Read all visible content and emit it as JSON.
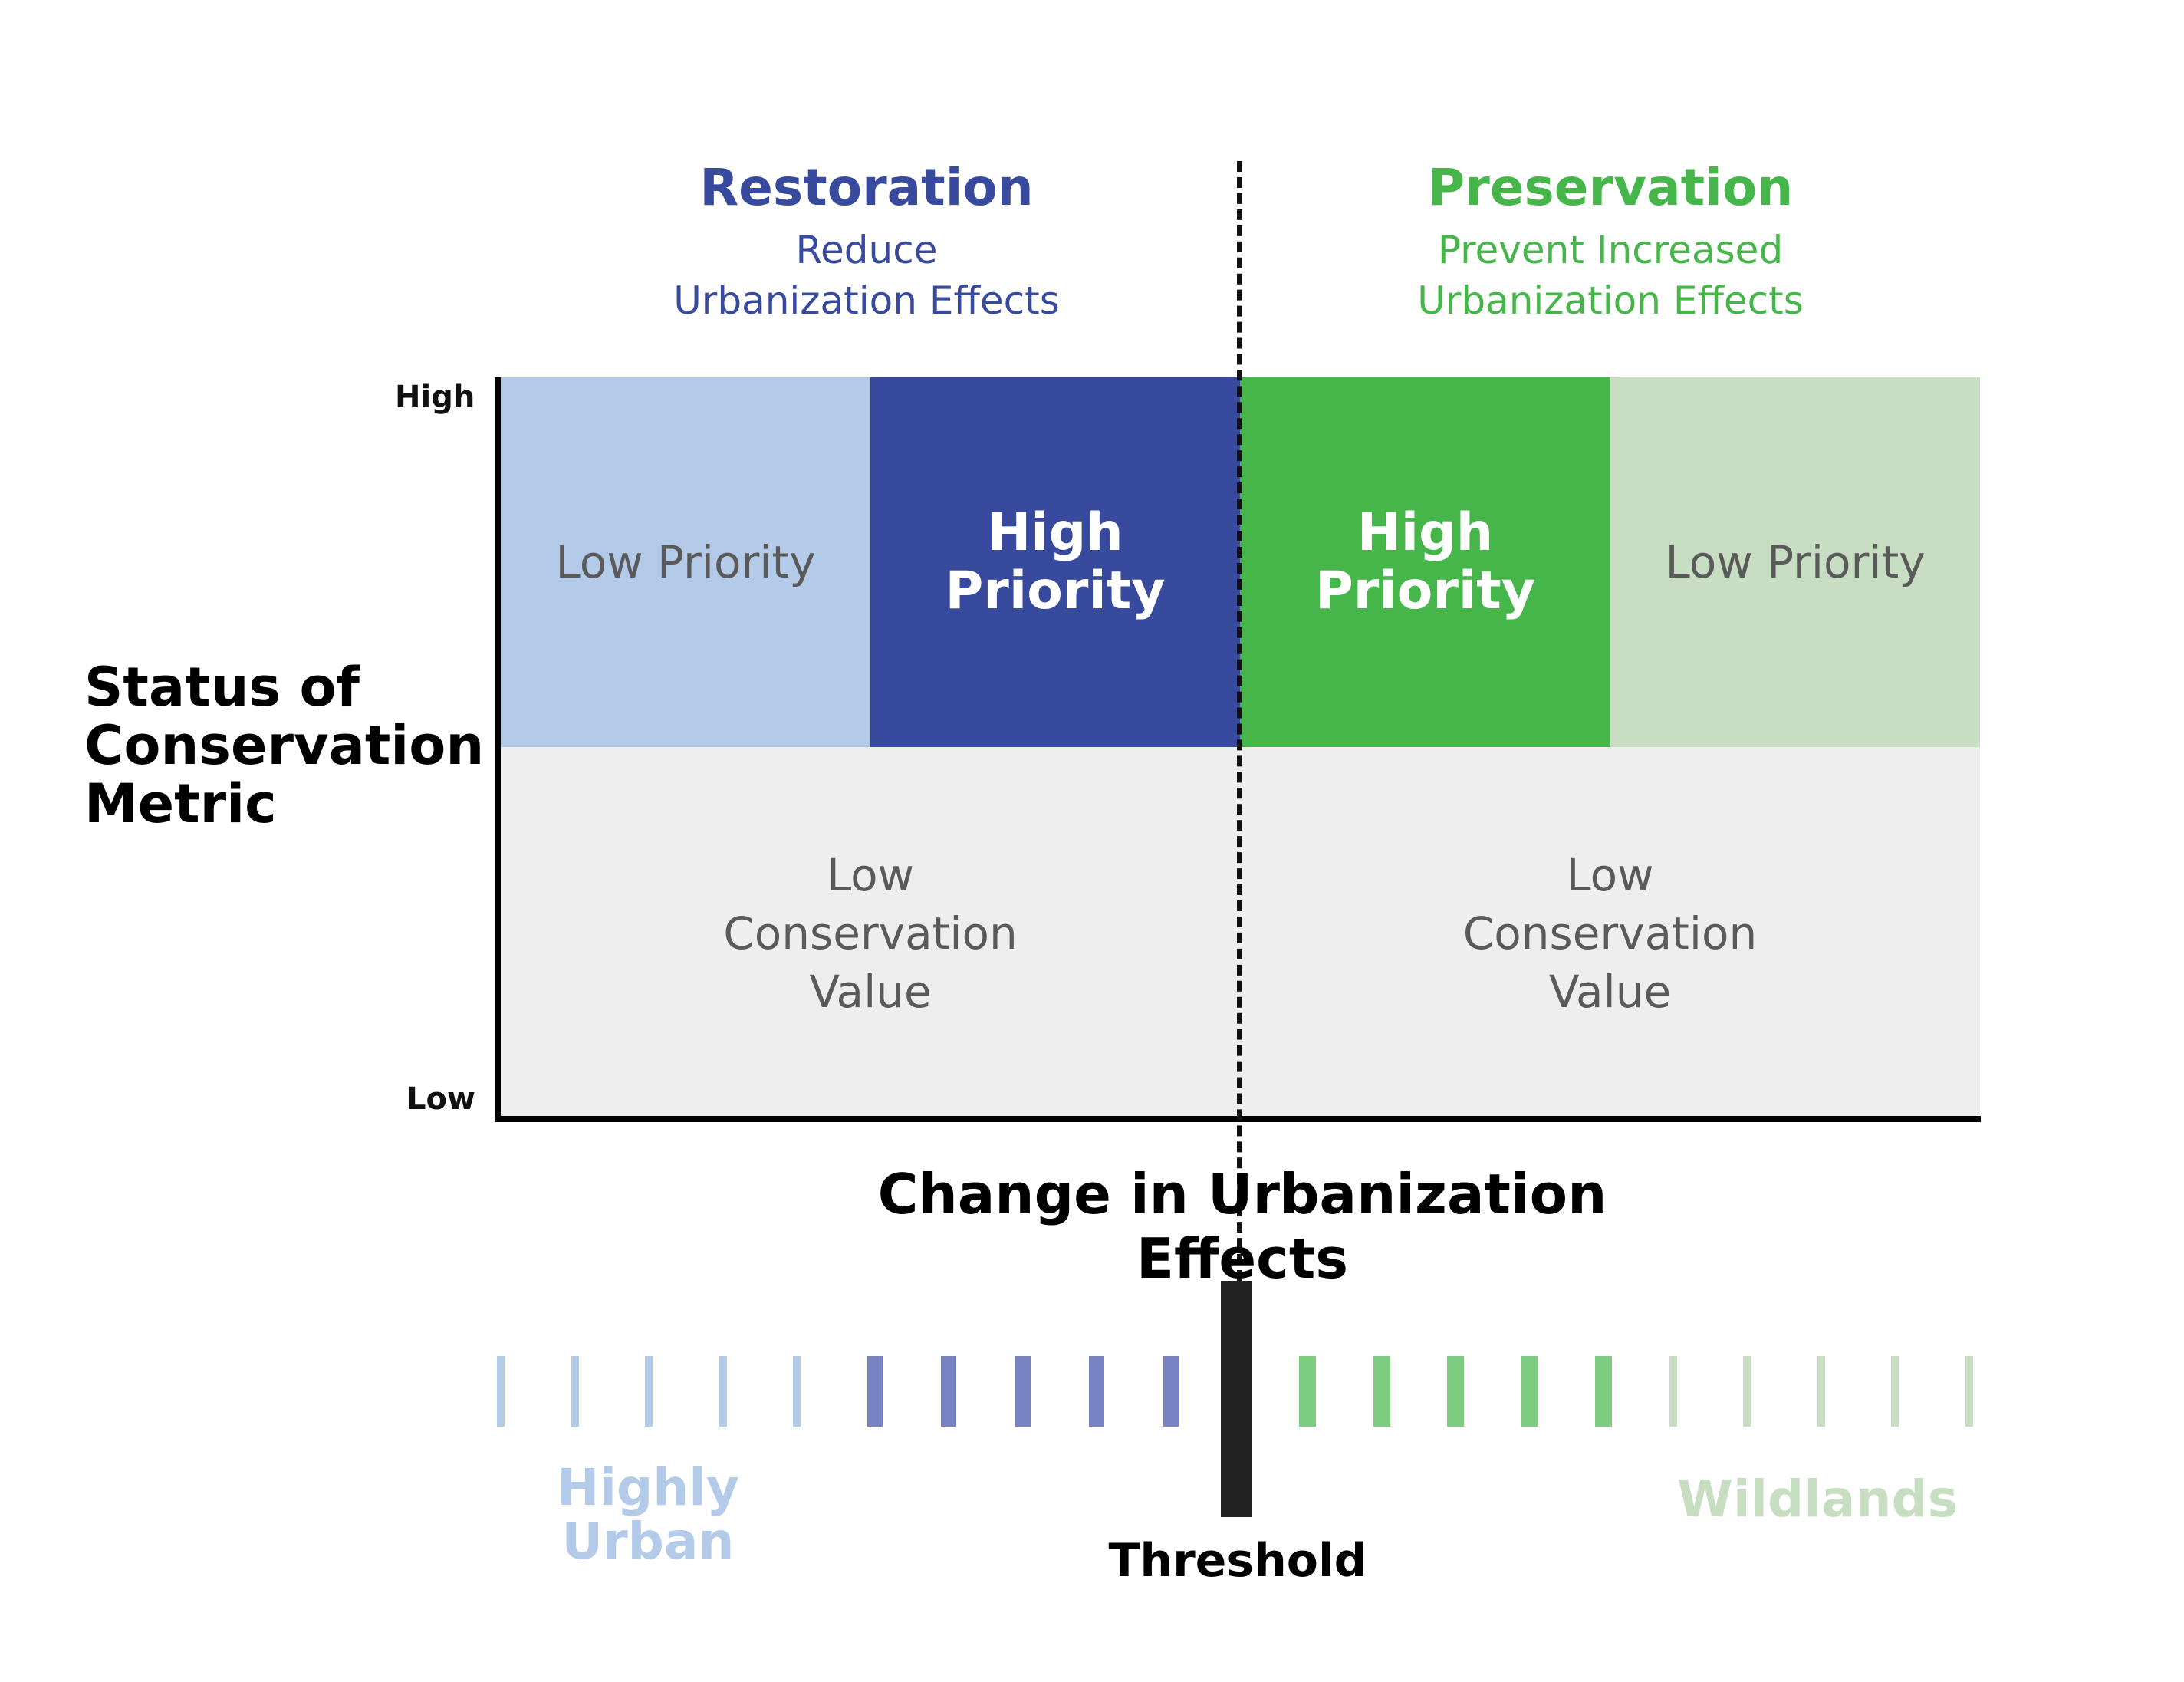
{
  "colors": {
    "restoration": "#384a9e",
    "preservation": "#46b64a",
    "restoration_light": "#b4cae9",
    "preservation_light": "#c7dec2",
    "low_value_bg": "#eeeeee",
    "gray_text": "#5a5a5a"
  },
  "restoration": {
    "title": "Restoration",
    "subtitle_line1": "Reduce",
    "subtitle_line2": "Urbanization Effects"
  },
  "preservation": {
    "title": "Preservation",
    "subtitle_line1": "Prevent Increased",
    "subtitle_line2": "Urbanization Effects"
  },
  "cells": {
    "restoration_low_priority": "Low Priority",
    "restoration_high_priority": "High Priority",
    "preservation_high_priority": "High Priority",
    "preservation_low_priority": "Low Priority",
    "low_value_left": {
      "line1": "Low",
      "line2": "Conservation",
      "line3": "Value"
    },
    "low_value_right": {
      "line1": "Low",
      "line2": "Conservation",
      "line3": "Value"
    }
  },
  "y_axis": {
    "label_line1": "Status of",
    "label_line2": "Conservation",
    "label_line3": "Metric",
    "high": "High",
    "low": "Low"
  },
  "x_axis": {
    "label": "Change in Urbanization Effects"
  },
  "scale": {
    "left_label_line1": "Highly",
    "left_label_line2": "Urban",
    "right_label": "Wildlands",
    "threshold_label": "Threshold",
    "bar_groups": [
      "restoration_light",
      "restoration",
      "preservation",
      "preservation_light"
    ],
    "bars_per_group": 5
  }
}
